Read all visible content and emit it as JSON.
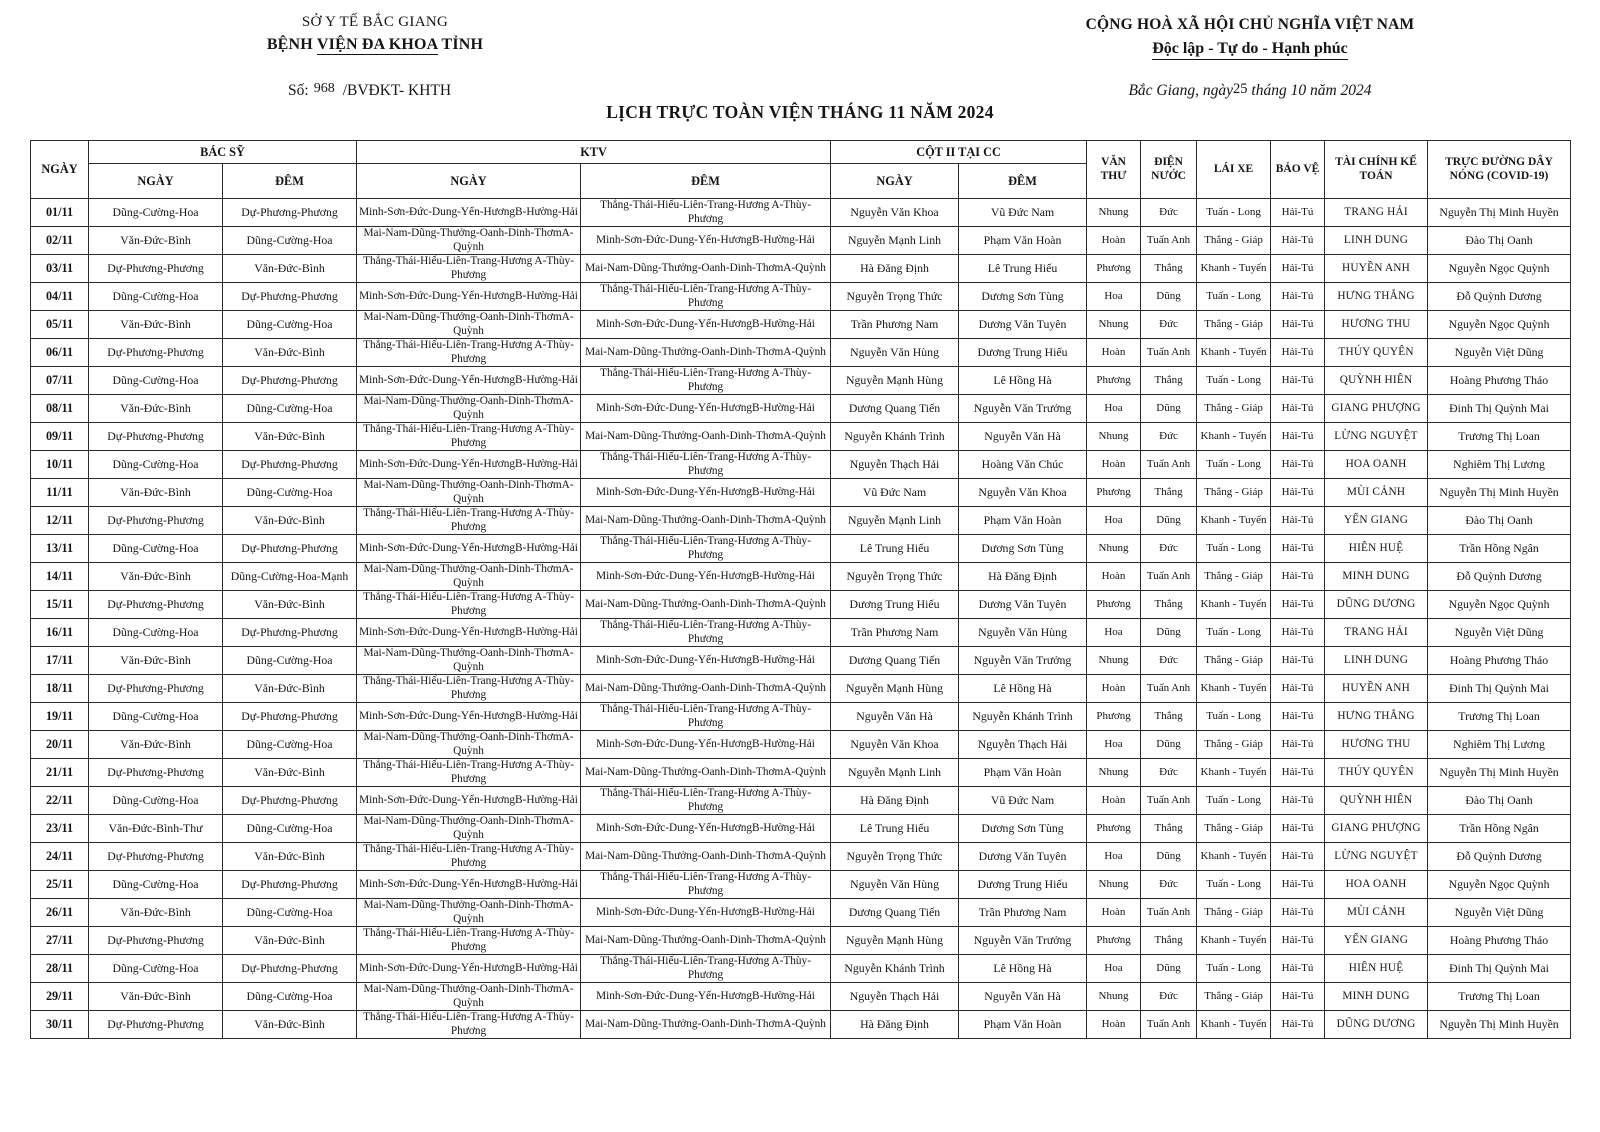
{
  "header": {
    "left": {
      "department": "SỞ Y TẾ BẮC GIANG",
      "hospital_pre": "BỆNH",
      "hospital_underlined": "VIỆN ĐA KHOA",
      "hospital_post": "TỈNH"
    },
    "doc_number": {
      "label": "Số:",
      "number": "968",
      "suffix": "/BVĐKT- KHTH"
    },
    "right": {
      "country": "CỘNG HOÀ XÃ HỘI CHỦ NGHĨA VIỆT NAM",
      "motto": "Độc lập - Tự do - Hạnh phúc"
    },
    "date_line": {
      "pre": "Bắc Giang, ngày",
      "day": "25",
      "post": "tháng 10 năm 2024"
    },
    "title": "LỊCH TRỰC TOÀN VIỆN THÁNG 11 NĂM 2024"
  },
  "table": {
    "columns": {
      "ngay": "NGÀY",
      "bac_sy": "BÁC SỸ",
      "ktv": "KTV",
      "cot2": "CỘT II TẠI CC",
      "sub_day": "NGÀY",
      "sub_night": "ĐÊM",
      "van_thu": "VĂN THƯ",
      "dien_nuoc": "ĐIỆN NƯỚC",
      "lai_xe": "LÁI XE",
      "bao_ve": "BẢO VỆ",
      "tai_chinh": "TÀI CHÍNH KẾ TOÁN",
      "hotline": "TRỰC ĐƯỜNG DÂY NÓNG (COVID-19)"
    },
    "rows": [
      [
        "01/11",
        "Dũng-Cường-Hoa",
        "Dự-Phương-Phương",
        "Minh-Sơn-Đức-Dung-Yến-HươngB-Hường-Hải",
        "Thắng-Thái-Hiếu-Liên-Trang-Hương A-Thùy-Phương",
        "Nguyễn Văn Khoa",
        "Vũ Đức Nam",
        "Nhung",
        "Đức",
        "Tuấn - Long",
        "Hải-Tú",
        "TRANG HẢI",
        "Nguyễn Thị Minh Huyền"
      ],
      [
        "02/11",
        "Văn-Đức-Bình",
        "Dũng-Cường-Hoa",
        "Mai-Nam-Dũng-Thưởng-Oanh-Dinh-ThơmA-Quỳnh",
        "Minh-Sơn-Đức-Dung-Yến-HươngB-Hường-Hải",
        "Nguyễn Mạnh Linh",
        "Phạm Văn Hoàn",
        "Hoàn",
        "Tuấn Anh",
        "Thắng - Giáp",
        "Hải-Tú",
        "LINH DUNG",
        "Đào Thị Oanh"
      ],
      [
        "03/11",
        "Dự-Phương-Phương",
        "Văn-Đức-Bình",
        "Thắng-Thái-Hiếu-Liên-Trang-Hương A-Thùy-Phương",
        "Mai-Nam-Dũng-Thưởng-Oanh-Dinh-ThơmA-Quỳnh",
        "Hà Đăng Định",
        "Lê Trung Hiếu",
        "Phương",
        "Thắng",
        "Khanh - Tuyến",
        "Hải-Tú",
        "HUYỀN ANH",
        "Nguyễn Ngọc Quỳnh"
      ],
      [
        "04/11",
        "Dũng-Cường-Hoa",
        "Dự-Phương-Phương",
        "Minh-Sơn-Đức-Dung-Yến-HươngB-Hường-Hải",
        "Thắng-Thái-Hiếu-Liên-Trang-Hương A-Thùy-Phương",
        "Nguyễn Trọng Thức",
        "Dương Sơn Tùng",
        "Hoa",
        "Dũng",
        "Tuấn - Long",
        "Hải-Tú",
        "HƯNG THẮNG",
        "Đỗ Quỳnh Dương"
      ],
      [
        "05/11",
        "Văn-Đức-Bình",
        "Dũng-Cường-Hoa",
        "Mai-Nam-Dũng-Thưởng-Oanh-Dinh-ThơmA-Quỳnh",
        "Minh-Sơn-Đức-Dung-Yến-HươngB-Hường-Hải",
        "Trần Phương Nam",
        "Dương Văn Tuyên",
        "Nhung",
        "Đức",
        "Thắng - Giáp",
        "Hải-Tú",
        "HƯƠNG THU",
        "Nguyễn Ngọc Quỳnh"
      ],
      [
        "06/11",
        "Dự-Phương-Phương",
        "Văn-Đức-Bình",
        "Thắng-Thái-Hiếu-Liên-Trang-Hương A-Thùy-Phương",
        "Mai-Nam-Dũng-Thưởng-Oanh-Dinh-ThơmA-Quỳnh",
        "Nguyễn Văn Hùng",
        "Dương Trung Hiếu",
        "Hoàn",
        "Tuấn Anh",
        "Khanh - Tuyến",
        "Hải-Tú",
        "THÚY QUYÊN",
        "Nguyễn Việt Dũng"
      ],
      [
        "07/11",
        "Dũng-Cường-Hoa",
        "Dự-Phương-Phương",
        "Minh-Sơn-Đức-Dung-Yến-HươngB-Hường-Hải",
        "Thắng-Thái-Hiếu-Liên-Trang-Hương A-Thùy-Phương",
        "Nguyễn Mạnh Hùng",
        "Lê Hồng Hà",
        "Phương",
        "Thắng",
        "Tuấn - Long",
        "Hải-Tú",
        "QUỲNH HIÊN",
        "Hoàng Phương Thảo"
      ],
      [
        "08/11",
        "Văn-Đức-Bình",
        "Dũng-Cường-Hoa",
        "Mai-Nam-Dũng-Thưởng-Oanh-Dinh-ThơmA-Quỳnh",
        "Minh-Sơn-Đức-Dung-Yến-HươngB-Hường-Hải",
        "Dương Quang Tiến",
        "Nguyễn Văn Trưởng",
        "Hoa",
        "Dũng",
        "Thắng - Giáp",
        "Hải-Tú",
        "GIANG PHƯỢNG",
        "Đinh Thị Quỳnh Mai"
      ],
      [
        "09/11",
        "Dự-Phương-Phương",
        "Văn-Đức-Bình",
        "Thắng-Thái-Hiếu-Liên-Trang-Hương A-Thùy-Phương",
        "Mai-Nam-Dũng-Thưởng-Oanh-Dinh-ThơmA-Quỳnh",
        "Nguyễn Khánh Trình",
        "Nguyễn Văn Hà",
        "Nhung",
        "Đức",
        "Khanh - Tuyến",
        "Hải-Tú",
        "LỪNG NGUYỆT",
        "Trương Thị Loan"
      ],
      [
        "10/11",
        "Dũng-Cường-Hoa",
        "Dự-Phương-Phương",
        "Minh-Sơn-Đức-Dung-Yến-HươngB-Hường-Hải",
        "Thắng-Thái-Hiếu-Liên-Trang-Hương A-Thùy-Phương",
        "Nguyễn Thạch Hải",
        "Hoàng Văn Chúc",
        "Hoàn",
        "Tuấn Anh",
        "Tuấn - Long",
        "Hải-Tú",
        "HOA OANH",
        "Nghiêm Thị Lương"
      ],
      [
        "11/11",
        "Văn-Đức-Bình",
        "Dũng-Cường-Hoa",
        "Mai-Nam-Dũng-Thưởng-Oanh-Dinh-ThơmA-Quỳnh",
        "Minh-Sơn-Đức-Dung-Yến-HươngB-Hường-Hải",
        "Vũ Đức Nam",
        "Nguyễn Văn Khoa",
        "Phương",
        "Thắng",
        "Thắng - Giáp",
        "Hải-Tú",
        "MÙI CẢNH",
        "Nguyễn Thị Minh Huyền"
      ],
      [
        "12/11",
        "Dự-Phương-Phương",
        "Văn-Đức-Bình",
        "Thắng-Thái-Hiếu-Liên-Trang-Hương A-Thùy-Phương",
        "Mai-Nam-Dũng-Thưởng-Oanh-Dinh-ThơmA-Quỳnh",
        "Nguyễn Mạnh Linh",
        "Phạm Văn Hoàn",
        "Hoa",
        "Dũng",
        "Khanh - Tuyến",
        "Hải-Tú",
        "YẾN GIANG",
        "Đào Thị Oanh"
      ],
      [
        "13/11",
        "Dũng-Cường-Hoa",
        "Dự-Phương-Phương",
        "Minh-Sơn-Đức-Dung-Yến-HươngB-Hường-Hải",
        "Thắng-Thái-Hiếu-Liên-Trang-Hương A-Thùy-Phương",
        "Lê Trung Hiếu",
        "Dương Sơn Tùng",
        "Nhung",
        "Đức",
        "Tuấn - Long",
        "Hải-Tú",
        "HIÊN HUỆ",
        "Trần Hồng Ngân"
      ],
      [
        "14/11",
        "Văn-Đức-Bình",
        "Dũng-Cường-Hoa-Mạnh",
        "Mai-Nam-Dũng-Thưởng-Oanh-Dinh-ThơmA-Quỳnh",
        "Minh-Sơn-Đức-Dung-Yến-HươngB-Hường-Hải",
        "Nguyễn Trọng Thức",
        "Hà Đăng Định",
        "Hoàn",
        "Tuấn Anh",
        "Thắng - Giáp",
        "Hải-Tú",
        "MINH DUNG",
        "Đỗ Quỳnh Dương"
      ],
      [
        "15/11",
        "Dự-Phương-Phương",
        "Văn-Đức-Bình",
        "Thắng-Thái-Hiếu-Liên-Trang-Hương A-Thùy-Phương",
        "Mai-Nam-Dũng-Thưởng-Oanh-Dinh-ThơmA-Quỳnh",
        "Dương Trung Hiếu",
        "Dương Văn Tuyên",
        "Phương",
        "Thắng",
        "Khanh - Tuyến",
        "Hải-Tú",
        "DŨNG DƯƠNG",
        "Nguyễn Ngọc Quỳnh"
      ],
      [
        "16/11",
        "Dũng-Cường-Hoa",
        "Dự-Phương-Phương",
        "Minh-Sơn-Đức-Dung-Yến-HươngB-Hường-Hải",
        "Thắng-Thái-Hiếu-Liên-Trang-Hương A-Thùy-Phương",
        "Trần Phương Nam",
        "Nguyễn Văn Hùng",
        "Hoa",
        "Dũng",
        "Tuấn - Long",
        "Hải-Tú",
        "TRANG HẢI",
        "Nguyễn Việt Dũng"
      ],
      [
        "17/11",
        "Văn-Đức-Bình",
        "Dũng-Cường-Hoa",
        "Mai-Nam-Dũng-Thưởng-Oanh-Dinh-ThơmA-Quỳnh",
        "Minh-Sơn-Đức-Dung-Yến-HươngB-Hường-Hải",
        "Dương Quang Tiến",
        "Nguyễn Văn Trưởng",
        "Nhung",
        "Đức",
        "Thắng - Giáp",
        "Hải-Tú",
        "LINH DUNG",
        "Hoàng Phương Thảo"
      ],
      [
        "18/11",
        "Dự-Phương-Phương",
        "Văn-Đức-Bình",
        "Thắng-Thái-Hiếu-Liên-Trang-Hương A-Thùy-Phương",
        "Mai-Nam-Dũng-Thưởng-Oanh-Dinh-ThơmA-Quỳnh",
        "Nguyễn Mạnh Hùng",
        "Lê Hồng Hà",
        "Hoàn",
        "Tuấn Anh",
        "Khanh - Tuyến",
        "Hải-Tú",
        "HUYỀN ANH",
        "Đinh Thị Quỳnh Mai"
      ],
      [
        "19/11",
        "Dũng-Cường-Hoa",
        "Dự-Phương-Phương",
        "Minh-Sơn-Đức-Dung-Yến-HươngB-Hường-Hải",
        "Thắng-Thái-Hiếu-Liên-Trang-Hương A-Thùy-Phương",
        "Nguyễn Văn Hà",
        "Nguyễn Khánh Trình",
        "Phương",
        "Thắng",
        "Tuấn - Long",
        "Hải-Tú",
        "HƯNG THẮNG",
        "Trương Thị Loan"
      ],
      [
        "20/11",
        "Văn-Đức-Bình",
        "Dũng-Cường-Hoa",
        "Mai-Nam-Dũng-Thưởng-Oanh-Dinh-ThơmA-Quỳnh",
        "Minh-Sơn-Đức-Dung-Yến-HươngB-Hường-Hải",
        "Nguyễn Văn Khoa",
        "Nguyễn Thạch Hải",
        "Hoa",
        "Dũng",
        "Thắng - Giáp",
        "Hải-Tú",
        "HƯƠNG THU",
        "Nghiêm Thị Lương"
      ],
      [
        "21/11",
        "Dự-Phương-Phương",
        "Văn-Đức-Bình",
        "Thắng-Thái-Hiếu-Liên-Trang-Hương A-Thùy-Phương",
        "Mai-Nam-Dũng-Thưởng-Oanh-Dinh-ThơmA-Quỳnh",
        "Nguyễn Mạnh Linh",
        "Phạm Văn Hoàn",
        "Nhung",
        "Đức",
        "Khanh - Tuyến",
        "Hải-Tú",
        "THÚY QUYÊN",
        "Nguyễn Thị Minh Huyền"
      ],
      [
        "22/11",
        "Dũng-Cường-Hoa",
        "Dự-Phương-Phương",
        "Minh-Sơn-Đức-Dung-Yến-HươngB-Hường-Hải",
        "Thắng-Thái-Hiếu-Liên-Trang-Hương A-Thùy-Phương",
        "Hà Đăng Định",
        "Vũ Đức Nam",
        "Hoàn",
        "Tuấn Anh",
        "Tuấn - Long",
        "Hải-Tú",
        "QUỲNH HIÊN",
        "Đào Thị Oanh"
      ],
      [
        "23/11",
        "Văn-Đức-Bình-Thư",
        "Dũng-Cường-Hoa",
        "Mai-Nam-Dũng-Thưởng-Oanh-Dinh-ThơmA-Quỳnh",
        "Minh-Sơn-Đức-Dung-Yến-HươngB-Hường-Hải",
        "Lê Trung Hiếu",
        "Dương Sơn Tùng",
        "Phương",
        "Thắng",
        "Thắng - Giáp",
        "Hải-Tú",
        "GIANG PHƯỢNG",
        "Trần Hồng Ngân"
      ],
      [
        "24/11",
        "Dự-Phương-Phương",
        "Văn-Đức-Bình",
        "Thắng-Thái-Hiếu-Liên-Trang-Hương A-Thùy-Phương",
        "Mai-Nam-Dũng-Thưởng-Oanh-Dinh-ThơmA-Quỳnh",
        "Nguyễn Trọng Thức",
        "Dương Văn Tuyên",
        "Hoa",
        "Dũng",
        "Khanh - Tuyến",
        "Hải-Tú",
        "LỪNG NGUYỆT",
        "Đỗ Quỳnh Dương"
      ],
      [
        "25/11",
        "Dũng-Cường-Hoa",
        "Dự-Phương-Phương",
        "Minh-Sơn-Đức-Dung-Yến-HươngB-Hường-Hải",
        "Thắng-Thái-Hiếu-Liên-Trang-Hương A-Thùy-Phương",
        "Nguyễn Văn Hùng",
        "Dương Trung Hiếu",
        "Nhung",
        "Đức",
        "Tuấn - Long",
        "Hải-Tú",
        "HOA OANH",
        "Nguyễn Ngọc Quỳnh"
      ],
      [
        "26/11",
        "Văn-Đức-Bình",
        "Dũng-Cường-Hoa",
        "Mai-Nam-Dũng-Thưởng-Oanh-Dinh-ThơmA-Quỳnh",
        "Minh-Sơn-Đức-Dung-Yến-HươngB-Hường-Hải",
        "Dương Quang Tiến",
        "Trần Phương Nam",
        "Hoàn",
        "Tuấn Anh",
        "Thắng - Giáp",
        "Hải-Tú",
        "MÙI CẢNH",
        "Nguyễn Việt Dũng"
      ],
      [
        "27/11",
        "Dự-Phương-Phương",
        "Văn-Đức-Bình",
        "Thắng-Thái-Hiếu-Liên-Trang-Hương A-Thùy-Phương",
        "Mai-Nam-Dũng-Thưởng-Oanh-Dinh-ThơmA-Quỳnh",
        "Nguyễn Mạnh Hùng",
        "Nguyễn Văn Trưởng",
        "Phương",
        "Thắng",
        "Khanh - Tuyến",
        "Hải-Tú",
        "YẾN GIANG",
        "Hoàng Phương Thảo"
      ],
      [
        "28/11",
        "Dũng-Cường-Hoa",
        "Dự-Phương-Phương",
        "Minh-Sơn-Đức-Dung-Yến-HươngB-Hường-Hải",
        "Thắng-Thái-Hiếu-Liên-Trang-Hương A-Thùy-Phương",
        "Nguyễn Khánh Trình",
        "Lê Hồng Hà",
        "Hoa",
        "Dũng",
        "Tuấn - Long",
        "Hải-Tú",
        "HIÊN HUỆ",
        "Đinh Thị Quỳnh Mai"
      ],
      [
        "29/11",
        "Văn-Đức-Bình",
        "Dũng-Cường-Hoa",
        "Mai-Nam-Dũng-Thưởng-Oanh-Dinh-ThơmA-Quỳnh",
        "Minh-Sơn-Đức-Dung-Yến-HươngB-Hường-Hải",
        "Nguyễn Thạch Hải",
        "Nguyễn Văn Hà",
        "Nhung",
        "Đức",
        "Thắng - Giáp",
        "Hải-Tú",
        "MINH DUNG",
        "Trương Thị Loan"
      ],
      [
        "30/11",
        "Dự-Phương-Phương",
        "Văn-Đức-Bình",
        "Thắng-Thái-Hiếu-Liên-Trang-Hương A-Thùy-Phương",
        "Mai-Nam-Dũng-Thưởng-Oanh-Dinh-ThơmA-Quỳnh",
        "Hà Đăng Định",
        "Phạm Văn Hoàn",
        "Hoàn",
        "Tuấn Anh",
        "Khanh - Tuyến",
        "Hải-Tú",
        "DŨNG DƯƠNG",
        "Nguyễn Thị Minh Huyền"
      ]
    ]
  }
}
